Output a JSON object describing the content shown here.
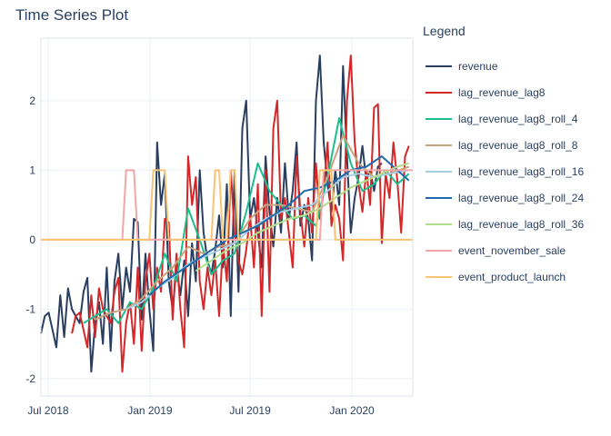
{
  "chart_data": {
    "type": "line",
    "title": "Time Series Plot",
    "legend_title": "Legend",
    "legend_position": "right",
    "grid": true,
    "x_is_date": true,
    "xlim": [
      "2018-06-18",
      "2020-04-20"
    ],
    "ylim": [
      -2.25,
      2.9
    ],
    "x_ticks": [
      {
        "value": "2018-07-01",
        "label": "Jul 2018"
      },
      {
        "value": "2019-01-01",
        "label": "Jan 2019"
      },
      {
        "value": "2019-07-01",
        "label": "Jul 2019"
      },
      {
        "value": "2020-01-01",
        "label": "Jan 2020"
      }
    ],
    "y_ticks": [
      -2,
      -1,
      0,
      1,
      2
    ],
    "series": [
      {
        "name": "revenue",
        "color": "#2a3f5f",
        "width": 2,
        "x": [
          "2018-06-18",
          "2018-06-25",
          "2018-07-02",
          "2018-07-09",
          "2018-07-16",
          "2018-07-23",
          "2018-07-30",
          "2018-08-06",
          "2018-08-13",
          "2018-08-20",
          "2018-08-27",
          "2018-09-03",
          "2018-09-10",
          "2018-09-17",
          "2018-09-24",
          "2018-10-01",
          "2018-10-08",
          "2018-10-15",
          "2018-10-22",
          "2018-10-29",
          "2018-11-05",
          "2018-11-12",
          "2018-11-19",
          "2018-11-26",
          "2018-12-03",
          "2018-12-10",
          "2018-12-17",
          "2018-12-24",
          "2018-12-31",
          "2019-01-07",
          "2019-01-14",
          "2019-01-21",
          "2019-01-28",
          "2019-02-04",
          "2019-02-11",
          "2019-02-18",
          "2019-02-25",
          "2019-03-04",
          "2019-03-11",
          "2019-03-18",
          "2019-03-25",
          "2019-04-01",
          "2019-04-08",
          "2019-04-15",
          "2019-04-22",
          "2019-04-29",
          "2019-05-06",
          "2019-05-13",
          "2019-05-20",
          "2019-05-27",
          "2019-06-03",
          "2019-06-10",
          "2019-06-17",
          "2019-06-24",
          "2019-07-01",
          "2019-07-08",
          "2019-07-15",
          "2019-07-22",
          "2019-07-29",
          "2019-08-05",
          "2019-08-12",
          "2019-08-19",
          "2019-08-26",
          "2019-09-02",
          "2019-09-09",
          "2019-09-16",
          "2019-09-23",
          "2019-09-30",
          "2019-10-07",
          "2019-10-14",
          "2019-10-21",
          "2019-10-28",
          "2019-11-04",
          "2019-11-11",
          "2019-11-18",
          "2019-11-25",
          "2019-12-02",
          "2019-12-09",
          "2019-12-16",
          "2019-12-23",
          "2019-12-30",
          "2020-01-06",
          "2020-01-13",
          "2020-01-20",
          "2020-01-27",
          "2020-02-03",
          "2020-02-10",
          "2020-02-17",
          "2020-02-24"
        ],
        "y": [
          -1.35,
          -1.1,
          -1.05,
          -1.3,
          -1.55,
          -0.8,
          -1.4,
          -0.7,
          -1.0,
          -1.1,
          -1.2,
          -0.75,
          -0.55,
          -1.9,
          -1.2,
          -0.9,
          -1.5,
          -0.4,
          -1.6,
          -0.6,
          -0.2,
          -1.0,
          -0.4,
          -0.75,
          0.3,
          0.25,
          -1.15,
          -0.2,
          -1.0,
          -1.6,
          1.4,
          0.5,
          0.95,
          -0.6,
          -1.0,
          -0.4,
          -0.8,
          -0.3,
          -1.1,
          -0.05,
          -0.6,
          1.0,
          0.1,
          -0.3,
          -0.5,
          -0.15,
          0.35,
          -0.4,
          0.8,
          -1.1,
          1.0,
          -0.75,
          1.6,
          2.0,
          0.3,
          0.6,
          0.1,
          -0.4,
          1.2,
          0.4,
          -0.1,
          0.6,
          0.1,
          1.1,
          0.3,
          0.7,
          1.4,
          0.2,
          0.5,
          0.3,
          -0.3,
          2.0,
          2.65,
          1.4,
          0.8,
          0.4,
          1.0,
          0.5,
          2.5,
          1.2,
          0.1,
          0.6,
          0.9,
          1.35,
          0.85,
          1.0,
          0.7,
          1.05,
          1.1
        ]
      },
      {
        "name": "lag_revenue_lag8",
        "color": "#d62728",
        "width": 2,
        "x": [
          "2018-08-13",
          "2018-08-20",
          "2018-08-27",
          "2018-09-03",
          "2018-09-10",
          "2018-09-17",
          "2018-09-24",
          "2018-10-01",
          "2018-10-08",
          "2018-10-15",
          "2018-10-22",
          "2018-10-29",
          "2018-11-05",
          "2018-11-12",
          "2018-11-19",
          "2018-11-26",
          "2018-12-03",
          "2018-12-10",
          "2018-12-17",
          "2018-12-24",
          "2018-12-31",
          "2019-01-07",
          "2019-01-14",
          "2019-01-21",
          "2019-01-28",
          "2019-02-04",
          "2019-02-11",
          "2019-02-18",
          "2019-02-25",
          "2019-03-04",
          "2019-03-11",
          "2019-03-18",
          "2019-03-25",
          "2019-04-01",
          "2019-04-08",
          "2019-04-15",
          "2019-04-22",
          "2019-04-29",
          "2019-05-06",
          "2019-05-13",
          "2019-05-20",
          "2019-05-27",
          "2019-06-03",
          "2019-06-10",
          "2019-06-17",
          "2019-06-24",
          "2019-07-01",
          "2019-07-08",
          "2019-07-15",
          "2019-07-22",
          "2019-07-29",
          "2019-08-05",
          "2019-08-12",
          "2019-08-19",
          "2019-08-26",
          "2019-09-02",
          "2019-09-09",
          "2019-09-16",
          "2019-09-23",
          "2019-09-30",
          "2019-10-07",
          "2019-10-14",
          "2019-10-21",
          "2019-10-28",
          "2019-11-04",
          "2019-11-11",
          "2019-11-18",
          "2019-11-25",
          "2019-12-02",
          "2019-12-09",
          "2019-12-16",
          "2019-12-23",
          "2019-12-30",
          "2020-01-06",
          "2020-01-13",
          "2020-01-20",
          "2020-01-27",
          "2020-02-03",
          "2020-02-10",
          "2020-02-17",
          "2020-02-24",
          "2020-03-02",
          "2020-03-09",
          "2020-03-16",
          "2020-03-23",
          "2020-03-30",
          "2020-04-06",
          "2020-04-13"
        ],
        "y": [
          -1.35,
          -1.1,
          -1.05,
          -1.3,
          -1.55,
          -0.8,
          -1.4,
          -0.7,
          -1.0,
          -1.1,
          -1.2,
          -0.75,
          -0.55,
          -1.9,
          -1.2,
          -0.9,
          -1.5,
          -0.4,
          -1.6,
          -0.6,
          -0.2,
          -1.0,
          -0.4,
          -0.75,
          0.3,
          0.25,
          -1.15,
          -0.2,
          -1.0,
          -1.55,
          1.2,
          0.5,
          0.9,
          -0.6,
          -1.0,
          -0.4,
          -0.8,
          -0.3,
          -1.1,
          -0.05,
          -0.6,
          1.0,
          0.1,
          -0.3,
          -0.5,
          -0.15,
          0.35,
          -0.4,
          0.8,
          -1.1,
          1.0,
          -0.75,
          1.6,
          2.0,
          0.3,
          0.6,
          0.1,
          -0.4,
          1.2,
          0.4,
          -0.1,
          0.6,
          0.1,
          1.1,
          0.3,
          0.7,
          1.4,
          0.2,
          0.5,
          0.3,
          -0.3,
          2.0,
          2.65,
          1.4,
          0.8,
          0.4,
          1.0,
          0.5,
          1.9,
          1.95,
          -0.05,
          0.95,
          0.6,
          1.4,
          0.85,
          0.1,
          1.2,
          1.35
        ]
      },
      {
        "name": "lag_revenue_lag8_roll_4",
        "color": "#1cbe8c",
        "width": 2,
        "x": [
          "2018-09-03",
          "2018-09-24",
          "2018-10-15",
          "2018-11-05",
          "2018-11-26",
          "2018-12-17",
          "2019-01-07",
          "2019-01-28",
          "2019-02-18",
          "2019-03-11",
          "2019-04-01",
          "2019-04-22",
          "2019-05-13",
          "2019-06-03",
          "2019-06-24",
          "2019-07-15",
          "2019-08-05",
          "2019-08-26",
          "2019-09-16",
          "2019-10-07",
          "2019-10-28",
          "2019-11-18",
          "2019-12-09",
          "2019-12-30",
          "2020-01-20",
          "2020-02-10",
          "2020-03-02",
          "2020-03-23",
          "2020-04-13"
        ],
        "y": [
          -1.2,
          -1.1,
          -1.0,
          -1.2,
          -0.9,
          -1.0,
          -0.7,
          -0.2,
          -0.6,
          0.45,
          0.0,
          -0.5,
          -0.3,
          -0.2,
          0.4,
          1.1,
          0.7,
          0.5,
          0.3,
          0.35,
          0.2,
          0.9,
          1.75,
          1.1,
          0.7,
          0.8,
          1.0,
          0.8,
          0.95
        ]
      },
      {
        "name": "lag_revenue_lag8_roll_8",
        "color": "#c8a47e",
        "width": 2,
        "x": [
          "2018-09-24",
          "2018-10-22",
          "2018-11-19",
          "2018-12-17",
          "2019-01-14",
          "2019-02-11",
          "2019-03-11",
          "2019-04-08",
          "2019-05-06",
          "2019-06-03",
          "2019-07-01",
          "2019-07-29",
          "2019-08-26",
          "2019-09-23",
          "2019-10-21",
          "2019-11-18",
          "2019-12-16",
          "2020-01-13",
          "2020-02-10",
          "2020-03-09",
          "2020-04-13"
        ],
        "y": [
          -1.15,
          -1.05,
          -1.0,
          -0.85,
          -0.6,
          -0.4,
          -0.1,
          -0.2,
          -0.1,
          -0.05,
          0.3,
          0.5,
          0.5,
          0.45,
          0.4,
          0.9,
          1.5,
          1.1,
          0.9,
          0.95,
          1.05
        ]
      },
      {
        "name": "lag_revenue_lag8_roll_16",
        "color": "#a6cee3",
        "width": 2,
        "x": [
          "2018-11-19",
          "2018-12-17",
          "2019-01-14",
          "2019-02-11",
          "2019-03-11",
          "2019-04-08",
          "2019-05-06",
          "2019-06-03",
          "2019-07-01",
          "2019-07-29",
          "2019-08-26",
          "2019-09-23",
          "2019-10-21",
          "2019-11-18",
          "2019-12-16",
          "2020-01-13",
          "2020-02-10",
          "2020-03-09",
          "2020-04-13"
        ],
        "y": [
          -1.0,
          -0.9,
          -0.7,
          -0.55,
          -0.35,
          -0.25,
          -0.15,
          -0.05,
          0.15,
          0.3,
          0.4,
          0.45,
          0.5,
          0.7,
          0.9,
          0.95,
          0.9,
          0.95,
          1.0
        ]
      },
      {
        "name": "lag_revenue_lag8_roll_24",
        "color": "#1f69ad",
        "width": 2,
        "x": [
          "2018-12-31",
          "2019-01-28",
          "2019-02-25",
          "2019-03-25",
          "2019-04-22",
          "2019-05-20",
          "2019-06-17",
          "2019-07-15",
          "2019-08-12",
          "2019-09-09",
          "2019-10-07",
          "2019-11-04",
          "2019-12-02",
          "2019-12-30",
          "2020-01-27",
          "2020-02-24",
          "2020-03-23",
          "2020-04-13"
        ],
        "y": [
          -0.8,
          -0.6,
          -0.45,
          -0.3,
          -0.15,
          0.0,
          0.1,
          0.2,
          0.35,
          0.5,
          0.7,
          0.75,
          0.85,
          1.0,
          1.05,
          1.2,
          1.0,
          0.85
        ]
      },
      {
        "name": "lag_revenue_lag8_roll_36",
        "color": "#b2df8a",
        "width": 2,
        "x": [
          "2019-03-25",
          "2019-04-22",
          "2019-05-20",
          "2019-06-17",
          "2019-07-15",
          "2019-08-12",
          "2019-09-09",
          "2019-10-07",
          "2019-11-04",
          "2019-12-02",
          "2019-12-30",
          "2020-01-27",
          "2020-02-24",
          "2020-03-23",
          "2020-04-13"
        ],
        "y": [
          -0.45,
          -0.3,
          -0.15,
          -0.05,
          0.1,
          0.2,
          0.3,
          0.35,
          0.45,
          0.6,
          0.75,
          0.85,
          0.95,
          1.05,
          1.1
        ]
      },
      {
        "name": "event_november_sale",
        "color": "#f4a6a6",
        "width": 2,
        "x": [
          "2018-06-18",
          "2018-11-12",
          "2018-11-19",
          "2018-11-26",
          "2018-12-03",
          "2018-12-10",
          "2019-11-04",
          "2019-11-11",
          "2019-11-18",
          "2019-11-25",
          "2019-12-02",
          "2020-04-20"
        ],
        "y": [
          0,
          0,
          1,
          1,
          1,
          0,
          0,
          1,
          1,
          1,
          1,
          1
        ]
      },
      {
        "name": "event_product_launch",
        "color": "#f8c471",
        "width": 2,
        "x": [
          "2018-06-18",
          "2018-12-31",
          "2019-01-07",
          "2019-01-28",
          "2019-02-04",
          "2019-04-22",
          "2019-04-29",
          "2019-05-06",
          "2019-05-13",
          "2019-05-20",
          "2019-05-27",
          "2019-06-03",
          "2019-06-10",
          "2019-06-17",
          "2019-06-24",
          "2019-10-28",
          "2019-11-04",
          "2019-11-25",
          "2019-12-02",
          "2020-04-20"
        ],
        "y": [
          0,
          0,
          1,
          1,
          0,
          0,
          1,
          1,
          0,
          0,
          1,
          1,
          0,
          0,
          0,
          0,
          1,
          1,
          0,
          0
        ]
      }
    ]
  }
}
